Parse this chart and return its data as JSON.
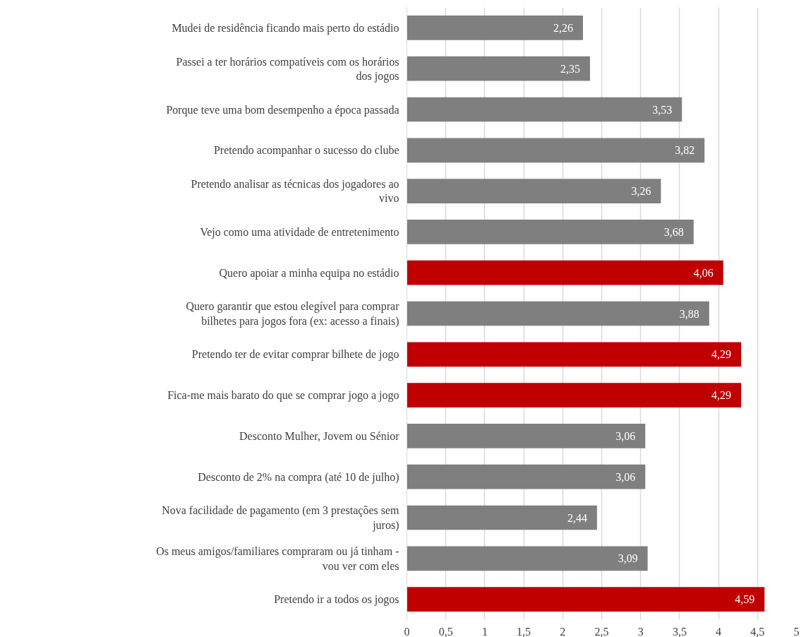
{
  "chart_data": {
    "type": "bar",
    "orientation": "horizontal",
    "categories": [
      "Mudei de residência ficando mais perto do estádio",
      "Passei a ter horários compatíveis com os horários dos jogos",
      "Porque teve uma bom desempenho a época passada",
      "Pretendo acompanhar o sucesso do clube",
      "Pretendo analisar as técnicas dos jogadores ao vivo",
      "Vejo como uma atividade de entretenimento",
      "Quero apoiar a minha equipa no estádio",
      "Quero garantir que estou elegível para comprar bilhetes para jogos fora (ex: acesso a finais)",
      "Pretendo ter de evitar comprar bilhete de jogo",
      "Fica-me mais barato do que se comprar jogo a jogo",
      "Desconto Mulher, Jovem ou Sénior",
      "Desconto de 2% na compra (até 10 de julho)",
      "Nova facilidade de pagamento (em 3 prestações sem juros)",
      "Os meus amigos/familiares compraram ou já tinham - vou ver com eles",
      "Pretendo ir a todos os jogos"
    ],
    "values": [
      2.26,
      2.35,
      3.53,
      3.82,
      3.26,
      3.68,
      4.06,
      3.88,
      4.29,
      4.29,
      3.06,
      3.06,
      2.44,
      3.09,
      4.59
    ],
    "value_labels": [
      "2,26",
      "2,35",
      "3,53",
      "3,82",
      "3,26",
      "3,68",
      "4,06",
      "3,88",
      "4,29",
      "4,29",
      "3,06",
      "3,06",
      "2,44",
      "3,09",
      "4,59"
    ],
    "colors": [
      "#7f7f7f",
      "#7f7f7f",
      "#7f7f7f",
      "#7f7f7f",
      "#7f7f7f",
      "#7f7f7f",
      "#c00000",
      "#7f7f7f",
      "#c00000",
      "#c00000",
      "#7f7f7f",
      "#7f7f7f",
      "#7f7f7f",
      "#7f7f7f",
      "#c00000"
    ],
    "xlim": [
      0,
      5
    ],
    "xticks": [
      0,
      {
        "value": 0.5,
        "label": "0,5"
      },
      1,
      {
        "value": 1.5,
        "label": "1,5"
      },
      2,
      {
        "value": 2.5,
        "label": "2,5"
      },
      3,
      {
        "value": 3.5,
        "label": "3,5"
      },
      4,
      {
        "value": 4.5,
        "label": "4,5"
      },
      5
    ],
    "grid": "x"
  }
}
